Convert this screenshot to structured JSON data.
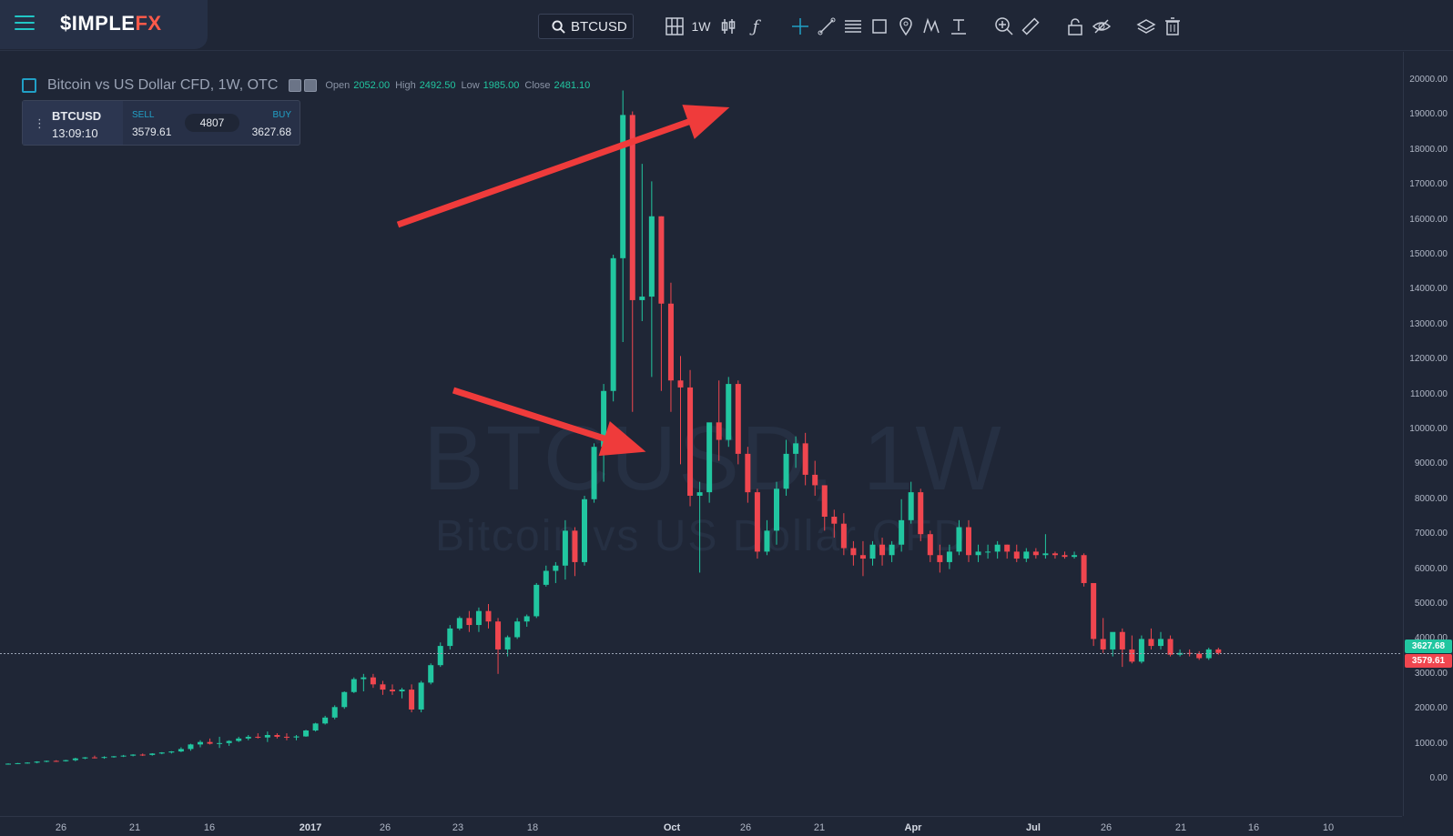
{
  "app": {
    "logo_white": "$IMPLE",
    "logo_orange": "FX"
  },
  "toolbar": {
    "search_value": "BTCUSD",
    "interval": "1W",
    "icons": [
      "layout-grid-icon",
      "interval-1w",
      "candle-type-icon",
      "indicator-function-icon",
      "crosshair-icon",
      "trend-line-icon",
      "fib-lines-icon",
      "rectangle-icon",
      "pin-marker-icon",
      "pattern-icon",
      "measure-icon",
      "zoom-in-icon",
      "ruler-icon",
      "lock-icon",
      "hide-eye-icon",
      "layers-icon",
      "trash-icon"
    ]
  },
  "legend": {
    "title": "Bitcoin vs US Dollar CFD, 1W, OTC",
    "open_label": "Open",
    "open": "2052.00",
    "high_label": "High",
    "high": "2492.50",
    "low_label": "Low",
    "low": "1985.00",
    "close_label": "Close",
    "close": "2481.10"
  },
  "trade": {
    "symbol": "BTCUSD",
    "time": "13:09:10",
    "sell_label": "SELL",
    "sell_price": "3579.61",
    "spread": "4807",
    "buy_label": "BUY",
    "buy_price": "3627.68"
  },
  "watermark": {
    "line1": "BTCUSD, 1W",
    "line2": "Bitcoin vs US Dollar CFD"
  },
  "price_axis": [
    "20000.00",
    "19000.00",
    "18000.00",
    "17000.00",
    "16000.00",
    "15000.00",
    "14000.00",
    "13000.00",
    "12000.00",
    "11000.00",
    "10000.00",
    "9000.00",
    "8000.00",
    "7000.00",
    "6000.00",
    "5000.00",
    "4000.00",
    "3000.00",
    "2000.00",
    "1000.00",
    "0.00"
  ],
  "price_labels": {
    "buy": "3627.68",
    "sell": "3579.61"
  },
  "time_axis": [
    "26",
    "21",
    "16",
    "2017",
    "26",
    "23",
    "18",
    "Oct",
    "26",
    "21",
    "Apr",
    "Jul",
    "26",
    "21",
    "16",
    "10"
  ],
  "colors": {
    "up": "#21c6a0",
    "down": "#f0464f",
    "background": "#1f2636",
    "accent": "#21c6c6"
  },
  "chart_data": {
    "type": "candlestick",
    "title": "Bitcoin vs US Dollar CFD, 1W, OTC",
    "ylim": [
      0,
      20000
    ],
    "candles": [
      [
        420,
        440,
        400,
        430
      ],
      [
        430,
        450,
        420,
        445
      ],
      [
        445,
        470,
        430,
        460
      ],
      [
        460,
        500,
        440,
        490
      ],
      [
        490,
        520,
        470,
        510
      ],
      [
        510,
        530,
        480,
        500
      ],
      [
        500,
        540,
        490,
        530
      ],
      [
        530,
        600,
        500,
        580
      ],
      [
        580,
        620,
        560,
        610
      ],
      [
        610,
        660,
        580,
        600
      ],
      [
        600,
        640,
        570,
        620
      ],
      [
        620,
        650,
        600,
        640
      ],
      [
        640,
        680,
        620,
        660
      ],
      [
        660,
        700,
        640,
        690
      ],
      [
        690,
        720,
        650,
        680
      ],
      [
        680,
        730,
        660,
        720
      ],
      [
        720,
        760,
        700,
        750
      ],
      [
        750,
        790,
        720,
        780
      ],
      [
        780,
        900,
        760,
        850
      ],
      [
        850,
        1000,
        800,
        980
      ],
      [
        980,
        1100,
        900,
        1050
      ],
      [
        1050,
        1150,
        980,
        1000
      ],
      [
        1000,
        1200,
        880,
        1020
      ],
      [
        1020,
        1100,
        940,
        1080
      ],
      [
        1080,
        1200,
        1050,
        1150
      ],
      [
        1150,
        1250,
        1100,
        1200
      ],
      [
        1200,
        1300,
        1150,
        1180
      ],
      [
        1180,
        1350,
        1050,
        1250
      ],
      [
        1250,
        1300,
        1150,
        1200
      ],
      [
        1200,
        1300,
        1100,
        1180
      ],
      [
        1180,
        1250,
        1100,
        1210
      ],
      [
        1210,
        1400,
        1200,
        1380
      ],
      [
        1380,
        1600,
        1350,
        1580
      ],
      [
        1580,
        1800,
        1550,
        1750
      ],
      [
        1750,
        2100,
        1700,
        2050
      ],
      [
        2050,
        2500,
        2000,
        2480
      ],
      [
        2480,
        2900,
        2450,
        2850
      ],
      [
        2850,
        3000,
        2500,
        2900
      ],
      [
        2900,
        3000,
        2600,
        2700
      ],
      [
        2700,
        2800,
        2400,
        2550
      ],
      [
        2550,
        2700,
        2400,
        2500
      ],
      [
        2500,
        2600,
        2300,
        2550
      ],
      [
        2550,
        2700,
        1900,
        1980
      ],
      [
        1980,
        2800,
        1900,
        2750
      ],
      [
        2750,
        3300,
        2700,
        3250
      ],
      [
        3250,
        3900,
        3200,
        3800
      ],
      [
        3800,
        4400,
        3700,
        4300
      ],
      [
        4300,
        4650,
        4250,
        4600
      ],
      [
        4600,
        4800,
        4200,
        4400
      ],
      [
        4400,
        4900,
        4200,
        4800
      ],
      [
        4800,
        5000,
        4300,
        4500
      ],
      [
        4500,
        4600,
        3000,
        3700
      ],
      [
        3700,
        4100,
        3500,
        4050
      ],
      [
        4050,
        4600,
        4000,
        4500
      ],
      [
        4500,
        4700,
        4350,
        4650
      ],
      [
        4650,
        5600,
        4600,
        5550
      ],
      [
        5550,
        6100,
        5500,
        5950
      ],
      [
        5950,
        6200,
        5600,
        6100
      ],
      [
        6100,
        7400,
        5700,
        7100
      ],
      [
        7100,
        7200,
        5800,
        6200
      ],
      [
        6200,
        8100,
        6100,
        8000
      ],
      [
        8000,
        9600,
        7900,
        9500
      ],
      [
        9500,
        11300,
        8500,
        11100
      ],
      [
        11100,
        15000,
        10800,
        14900
      ],
      [
        14900,
        19700,
        12500,
        19000
      ],
      [
        19000,
        19100,
        10500,
        13700
      ],
      [
        13700,
        17600,
        13100,
        13800
      ],
      [
        13800,
        17100,
        11500,
        16100
      ],
      [
        16100,
        16100,
        11100,
        13600
      ],
      [
        13600,
        14200,
        10500,
        11400
      ],
      [
        11400,
        12100,
        9000,
        11200
      ],
      [
        11200,
        11700,
        7800,
        8100
      ],
      [
        8100,
        8500,
        5900,
        8200
      ],
      [
        8200,
        10100,
        7900,
        10200
      ],
      [
        10200,
        11400,
        9100,
        9700
      ],
      [
        9700,
        11500,
        9500,
        11300
      ],
      [
        11300,
        11400,
        9000,
        9300
      ],
      [
        9300,
        9500,
        7900,
        8200
      ],
      [
        8200,
        8300,
        6300,
        6500
      ],
      [
        6500,
        7400,
        6400,
        7100
      ],
      [
        7100,
        8500,
        6700,
        8300
      ],
      [
        8300,
        9700,
        8100,
        9300
      ],
      [
        9300,
        9800,
        8900,
        9600
      ],
      [
        9600,
        9900,
        8400,
        8700
      ],
      [
        8700,
        9100,
        8100,
        8400
      ],
      [
        8400,
        8400,
        7100,
        7500
      ],
      [
        7500,
        7700,
        6900,
        7300
      ],
      [
        7300,
        7600,
        6400,
        6600
      ],
      [
        6600,
        6800,
        6100,
        6400
      ],
      [
        6400,
        6800,
        5800,
        6300
      ],
      [
        6300,
        6800,
        6100,
        6700
      ],
      [
        6700,
        6900,
        6100,
        6400
      ],
      [
        6400,
        6800,
        6200,
        6700
      ],
      [
        6700,
        8000,
        6500,
        7400
      ],
      [
        7400,
        8500,
        7300,
        8200
      ],
      [
        8200,
        8300,
        6800,
        7000
      ],
      [
        7000,
        7100,
        6200,
        6400
      ],
      [
        6400,
        6700,
        5900,
        6200
      ],
      [
        6200,
        6700,
        6000,
        6500
      ],
      [
        6500,
        7400,
        6400,
        7200
      ],
      [
        7200,
        7400,
        6200,
        6400
      ],
      [
        6400,
        6700,
        6200,
        6500
      ],
      [
        6500,
        6700,
        6300,
        6500
      ],
      [
        6500,
        6800,
        6300,
        6700
      ],
      [
        6700,
        6700,
        6300,
        6500
      ],
      [
        6500,
        6700,
        6200,
        6300
      ],
      [
        6300,
        6600,
        6200,
        6500
      ],
      [
        6500,
        6600,
        6300,
        6400
      ],
      [
        6400,
        7000,
        6300,
        6450
      ],
      [
        6450,
        6500,
        6300,
        6400
      ],
      [
        6400,
        6500,
        6300,
        6350
      ],
      [
        6350,
        6500,
        6300,
        6400
      ],
      [
        6400,
        6450,
        5500,
        5600
      ],
      [
        5600,
        5600,
        3800,
        4000
      ],
      [
        4000,
        4600,
        3600,
        3700
      ],
      [
        3700,
        4100,
        3500,
        4200
      ],
      [
        4200,
        4300,
        3200,
        3700
      ],
      [
        3700,
        4100,
        3300,
        3350
      ],
      [
        3350,
        4100,
        3300,
        4000
      ],
      [
        4000,
        4300,
        3700,
        3800
      ],
      [
        3800,
        4200,
        3700,
        4000
      ],
      [
        4000,
        4100,
        3500,
        3550
      ],
      [
        3550,
        3700,
        3500,
        3600
      ],
      [
        3600,
        3700,
        3500,
        3580
      ],
      [
        3580,
        3650,
        3400,
        3450
      ],
      [
        3450,
        3750,
        3400,
        3700
      ],
      [
        3700,
        3750,
        3550,
        3600
      ]
    ]
  }
}
